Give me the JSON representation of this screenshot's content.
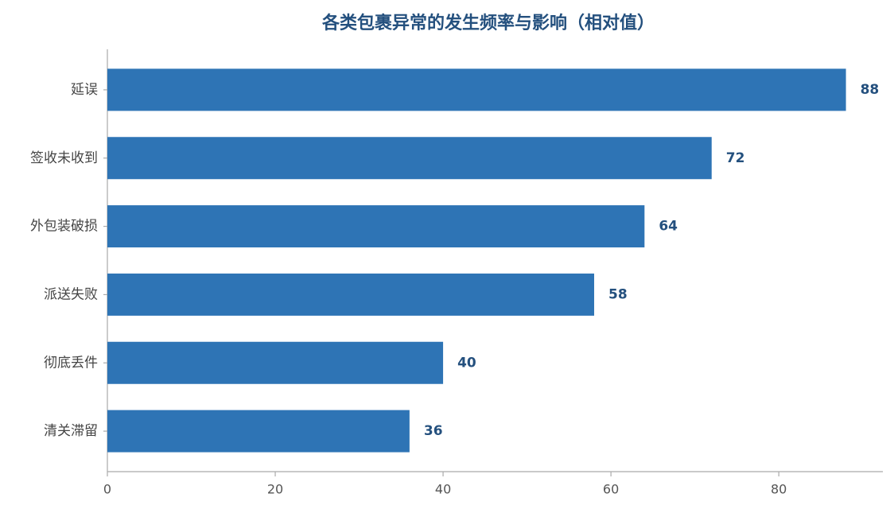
{
  "chart_data": {
    "type": "bar",
    "orientation": "horizontal",
    "title": "各类包裹异常的发生频率与影响（相对值）",
    "categories": [
      "延误",
      "签收未收到",
      "外包装破损",
      "派送失败",
      "彻底丢件",
      "清关滞留"
    ],
    "values": [
      88,
      72,
      64,
      58,
      40,
      36
    ],
    "color": "#2e74b5",
    "xlim": [
      0,
      92.4
    ],
    "xticks": [
      0,
      20,
      40,
      60,
      80
    ],
    "grid": false
  }
}
